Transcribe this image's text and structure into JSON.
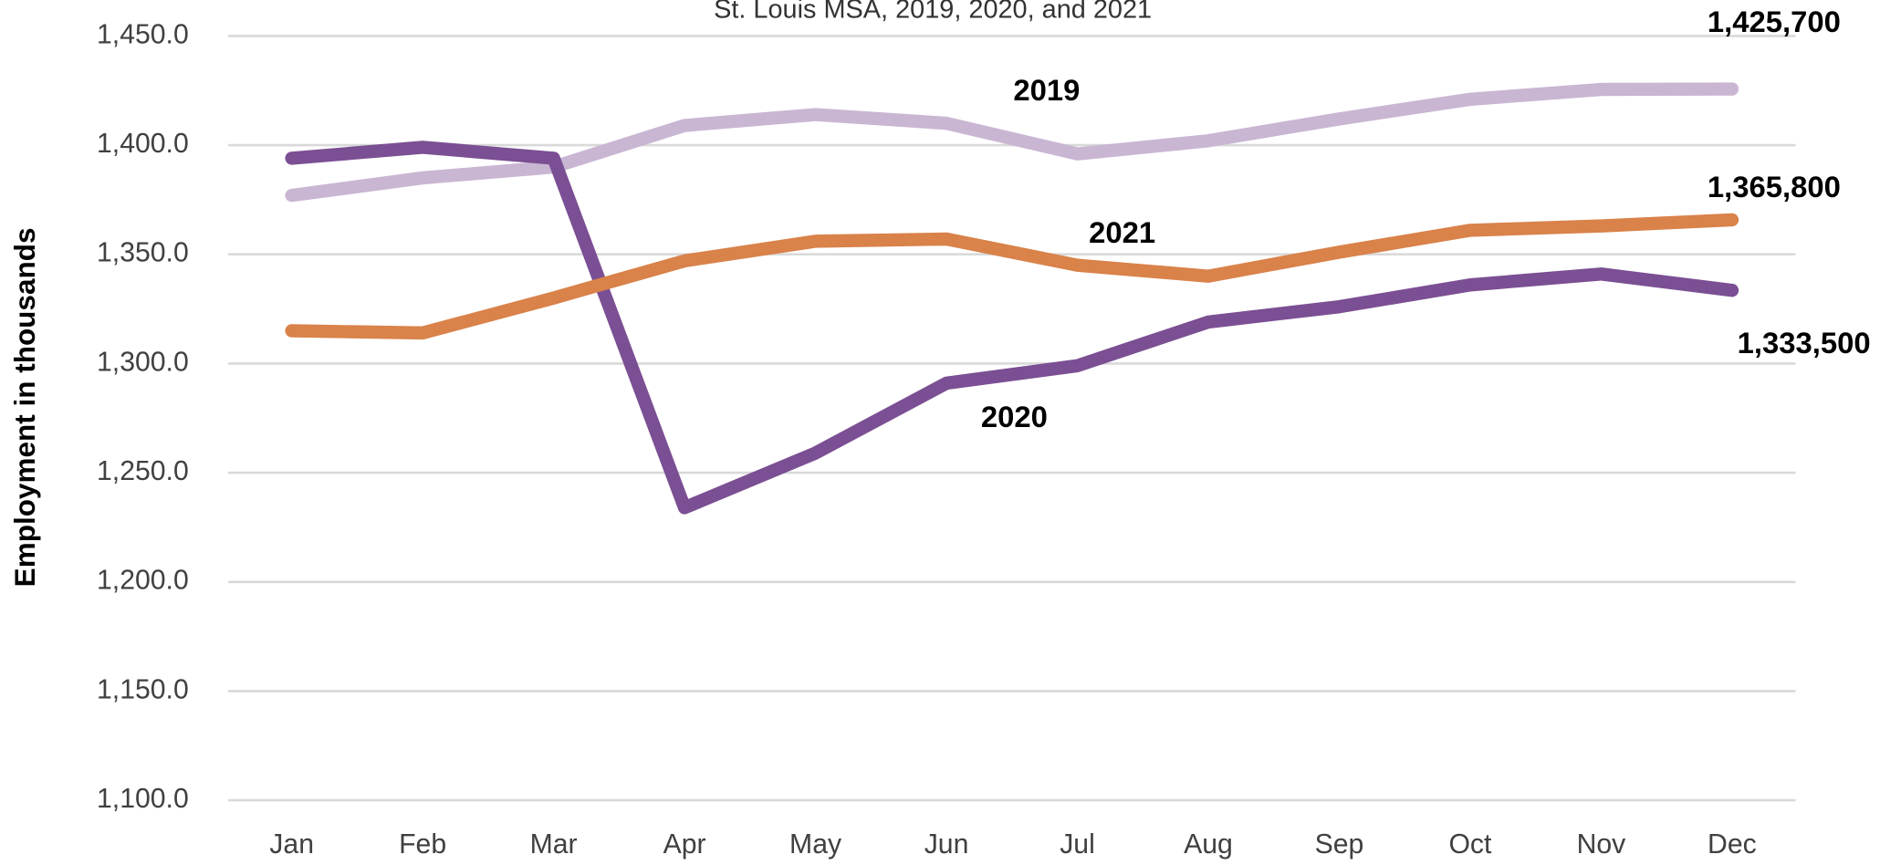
{
  "chart_data": {
    "type": "line",
    "title": "St. Louis MSA, 2019, 2020, and 2021",
    "y_label": "Employment in thousands",
    "categories": [
      "Jan",
      "Feb",
      "Mar",
      "Apr",
      "May",
      "Jun",
      "Jul",
      "Aug",
      "Sep",
      "Oct",
      "Nov",
      "Dec"
    ],
    "series": [
      {
        "name": "2019",
        "color": "#c9b6d3",
        "values": [
          1377,
          1385,
          1390,
          1409,
          1414,
          1410,
          1396,
          1402,
          1412,
          1421,
          1425.5,
          1425.7
        ],
        "value_labels": [
          null,
          null,
          null,
          null,
          null,
          null,
          null,
          null,
          null,
          null,
          null,
          "1,425,700"
        ]
      },
      {
        "name": "2020",
        "color": "#7b4f93",
        "values": [
          1394,
          1399,
          1394,
          1234,
          1259,
          1291,
          1299,
          1319,
          1326,
          1336,
          1341,
          1333.5
        ],
        "value_labels": [
          null,
          null,
          null,
          null,
          null,
          null,
          null,
          null,
          null,
          null,
          null,
          "1,333,500"
        ]
      },
      {
        "name": "2021",
        "color": "#d9824a",
        "values": [
          1315,
          1314,
          1330,
          1347,
          1356,
          1357,
          1345,
          1340,
          1351,
          1361,
          1363,
          1365.8
        ],
        "value_labels": [
          null,
          null,
          null,
          null,
          null,
          null,
          null,
          null,
          null,
          null,
          null,
          "1,365,800"
        ]
      }
    ],
    "ylim": [
      1100,
      1450
    ],
    "yticks": [
      {
        "value": 1100,
        "label": "1,100.0"
      },
      {
        "value": 1150,
        "label": "1,150.0"
      },
      {
        "value": 1200,
        "label": "1,200.0"
      },
      {
        "value": 1250,
        "label": "1,250.0"
      },
      {
        "value": 1300,
        "label": "1,300.0"
      },
      {
        "value": 1350,
        "label": "1,350.0"
      },
      {
        "value": 1400,
        "label": "1,400.0"
      },
      {
        "value": 1450,
        "label": "1,450.0"
      }
    ],
    "grid": true
  }
}
